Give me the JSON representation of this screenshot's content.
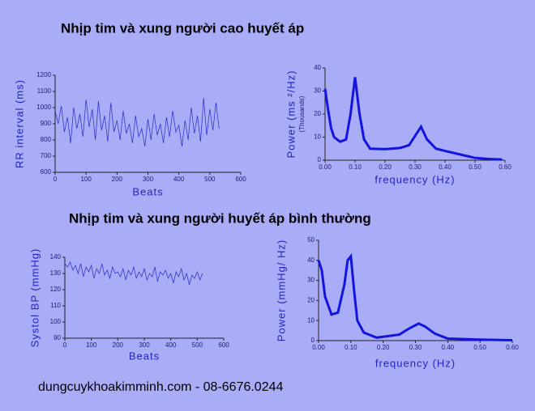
{
  "headings": [
    "Nhịp tim và xung người cao huyết áp",
    "Nhịp tim và xung người huyết áp bình thường"
  ],
  "footer": "dungcuykhoakimminh.com - 08-6676.0244",
  "chart_data": [
    {
      "type": "line",
      "y_label": "RR interval (ms)",
      "x_label": "Beats",
      "color": "#2828c8",
      "xlim": [
        0,
        600
      ],
      "xticks": [
        0,
        100,
        200,
        300,
        400,
        500,
        600
      ],
      "ylim": [
        600,
        1200
      ],
      "yticks": [
        600,
        700,
        800,
        900,
        1000,
        1100,
        1200
      ],
      "x": [
        0,
        10,
        20,
        30,
        40,
        50,
        60,
        70,
        80,
        90,
        100,
        110,
        120,
        130,
        140,
        150,
        160,
        170,
        180,
        190,
        200,
        210,
        220,
        230,
        240,
        250,
        260,
        270,
        280,
        290,
        300,
        310,
        320,
        330,
        340,
        350,
        360,
        370,
        380,
        390,
        400,
        410,
        420,
        430,
        440,
        450,
        460,
        470,
        480,
        490,
        500,
        510,
        520,
        530
      ],
      "values": [
        980,
        900,
        1010,
        850,
        940,
        780,
        1000,
        870,
        960,
        820,
        1050,
        880,
        990,
        800,
        1040,
        860,
        950,
        790,
        1030,
        850,
        920,
        800,
        980,
        840,
        900,
        780,
        950,
        820,
        870,
        760,
        930,
        800,
        960,
        830,
        900,
        780,
        940,
        820,
        980,
        850,
        890,
        760,
        920,
        800,
        1000,
        840,
        950,
        790,
        1060,
        830,
        990,
        860,
        1030,
        870
      ]
    },
    {
      "type": "line",
      "y_label": "Power (ms ²/Hz)",
      "y_label_note": "(Thousands)",
      "x_label": "frequency (Hz)",
      "color": "#1414e0",
      "xlim": [
        0,
        0.6
      ],
      "xticks": [
        {
          "value": 0,
          "label": "0.00"
        },
        {
          "value": 0.1,
          "label": "0.10"
        },
        {
          "value": 0.2,
          "label": "0.20"
        },
        {
          "value": 0.3,
          "label": "0.30"
        },
        {
          "value": 0.4,
          "label": "0.40"
        },
        {
          "value": 0.5,
          "label": "0.50"
        },
        {
          "value": 0.6,
          "label": "0.60"
        }
      ],
      "ylim": [
        0,
        40
      ],
      "yticks": [
        0,
        10,
        20,
        30,
        40
      ],
      "x": [
        0,
        0.01,
        0.02,
        0.03,
        0.05,
        0.07,
        0.085,
        0.1,
        0.115,
        0.13,
        0.15,
        0.2,
        0.25,
        0.28,
        0.3,
        0.32,
        0.34,
        0.37,
        0.4,
        0.45,
        0.5,
        0.55,
        0.59
      ],
      "values": [
        31,
        22,
        14,
        10,
        8,
        9,
        20,
        36,
        20,
        9,
        5,
        4.8,
        5.3,
        6.5,
        10.5,
        14.5,
        9,
        5,
        4,
        2.5,
        1,
        0.5,
        0.3
      ]
    },
    {
      "type": "line",
      "y_label": "Systol BP (mmHg)",
      "x_label": "Beats",
      "color": "#2828c8",
      "xlim": [
        0,
        600
      ],
      "xticks": [
        0,
        100,
        200,
        300,
        400,
        500,
        600
      ],
      "ylim": [
        90,
        140
      ],
      "yticks": [
        90,
        100,
        110,
        120,
        130,
        140
      ],
      "x": [
        0,
        10,
        20,
        30,
        40,
        50,
        60,
        70,
        80,
        90,
        100,
        110,
        120,
        130,
        140,
        150,
        160,
        170,
        180,
        190,
        200,
        210,
        220,
        230,
        240,
        250,
        260,
        270,
        280,
        290,
        300,
        310,
        320,
        330,
        340,
        350,
        360,
        370,
        380,
        390,
        400,
        410,
        420,
        430,
        440,
        450,
        460,
        470,
        480,
        490,
        500,
        510,
        520
      ],
      "values": [
        136,
        134,
        137,
        132,
        135,
        130,
        136,
        128,
        134,
        131,
        135,
        127,
        133,
        130,
        136,
        129,
        132,
        127,
        134,
        130,
        131,
        128,
        133,
        126,
        132,
        129,
        134,
        127,
        131,
        128,
        133,
        126,
        130,
        128,
        134,
        125,
        131,
        129,
        132,
        127,
        130,
        124,
        131,
        128,
        133,
        126,
        130,
        123,
        129,
        127,
        131,
        126,
        130
      ]
    },
    {
      "type": "line",
      "y_label": "Power (mmHg/ Hz)",
      "x_label": "frequency (Hz)",
      "color": "#1414e0",
      "xlim": [
        0,
        0.6
      ],
      "xticks": [
        {
          "value": 0,
          "label": "0.00"
        },
        {
          "value": 0.1,
          "label": "0.10"
        },
        {
          "value": 0.2,
          "label": "0.20"
        },
        {
          "value": 0.3,
          "label": "0.30"
        },
        {
          "value": 0.4,
          "label": "0.40"
        },
        {
          "value": 0.5,
          "label": "0.50"
        },
        {
          "value": 0.6,
          "label": "0.60"
        }
      ],
      "ylim": [
        0,
        50
      ],
      "yticks": [
        0,
        10,
        20,
        30,
        40,
        50
      ],
      "x": [
        0,
        0.01,
        0.02,
        0.04,
        0.06,
        0.08,
        0.09,
        0.1,
        0.11,
        0.12,
        0.14,
        0.18,
        0.25,
        0.28,
        0.31,
        0.33,
        0.36,
        0.4,
        0.5,
        0.6
      ],
      "values": [
        40,
        35,
        22,
        13,
        14,
        28,
        40,
        42,
        25,
        10,
        4,
        1.5,
        3,
        6,
        8.5,
        7,
        3.5,
        1,
        0.5,
        0.2
      ]
    }
  ]
}
